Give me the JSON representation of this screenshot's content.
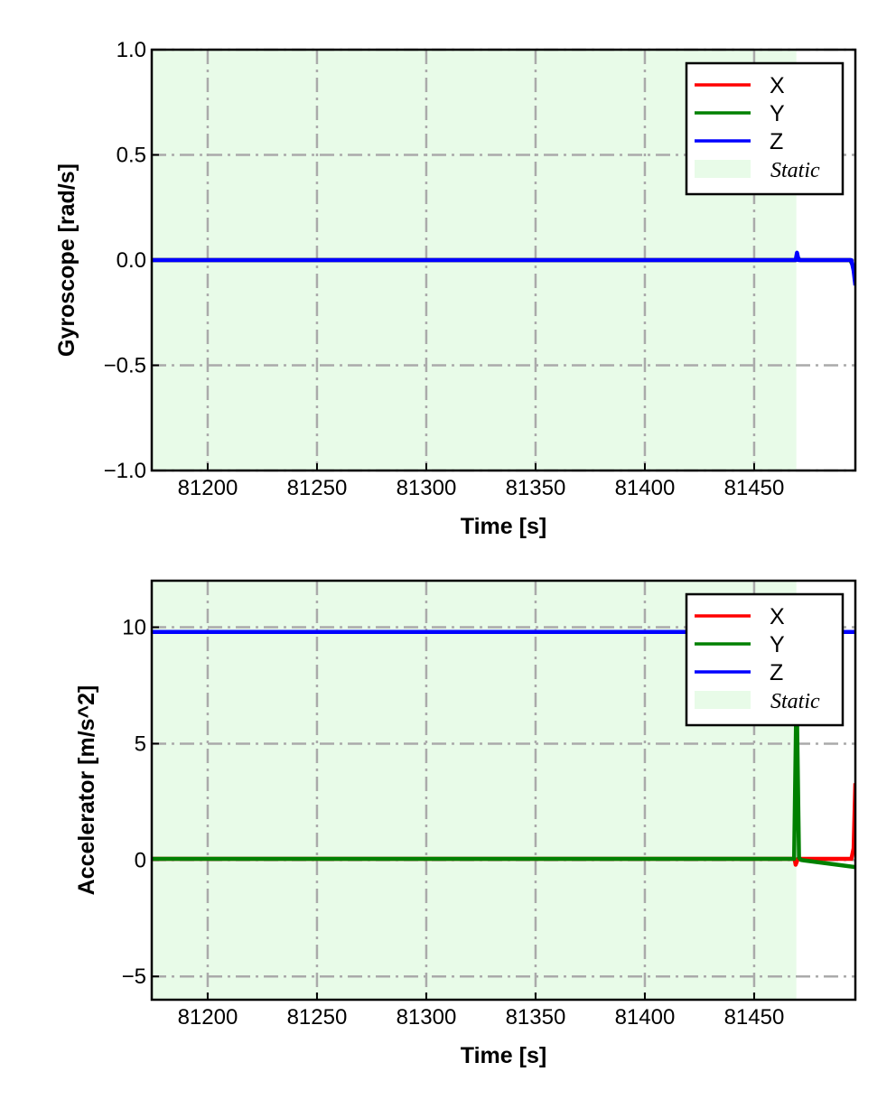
{
  "chart_data": [
    {
      "type": "line",
      "xlabel": "Time [s]",
      "ylabel": "Gyroscope [rad/s]",
      "xlim": [
        81174.4,
        81496.3
      ],
      "ylim": [
        -1.0,
        1.0
      ],
      "xticks": [
        81200,
        81250,
        81300,
        81350,
        81400,
        81450
      ],
      "xtick_labels": [
        "81200",
        "81250",
        "81300",
        "81350",
        "81400",
        "81450"
      ],
      "yticks": [
        -1.0,
        -0.5,
        0.0,
        0.5,
        1.0
      ],
      "ytick_labels": [
        "−1.0",
        "−0.5",
        "0.0",
        "0.5",
        "1.0"
      ],
      "grid": true,
      "legend_position": "top-right",
      "static_region": [
        81174.4,
        81469.3
      ],
      "static_color": "#e8fbe8",
      "series": [
        {
          "name": "X",
          "color": "#ff0000",
          "x": [
            81174.4,
            81469,
            81470,
            81471,
            81494,
            81496.3
          ],
          "y": [
            0,
            0,
            0.01,
            0,
            0,
            -0.05
          ]
        },
        {
          "name": "Y",
          "color": "#008000",
          "x": [
            81174.4,
            81469,
            81470,
            81471,
            81494,
            81496.3
          ],
          "y": [
            0,
            0,
            0.01,
            0,
            0,
            -0.05
          ]
        },
        {
          "name": "Z",
          "color": "#0000ff",
          "x": [
            81174.4,
            81469,
            81469.6,
            81470.3,
            81494.5,
            81495.5,
            81496.3
          ],
          "y": [
            0,
            0,
            0.035,
            0,
            0,
            -0.05,
            -0.12
          ]
        }
      ],
      "legend": [
        "X",
        "Y",
        "Z",
        "Static"
      ]
    },
    {
      "type": "line",
      "xlabel": "Time [s]",
      "ylabel": "Accelerator [m/s^2]",
      "xlim": [
        81174.4,
        81496.3
      ],
      "ylim": [
        -6,
        12
      ],
      "xticks": [
        81200,
        81250,
        81300,
        81350,
        81400,
        81450
      ],
      "xtick_labels": [
        "81200",
        "81250",
        "81300",
        "81350",
        "81400",
        "81450"
      ],
      "yticks": [
        -5,
        0,
        5,
        10
      ],
      "ytick_labels": [
        "−5",
        "0",
        "5",
        "10"
      ],
      "grid": true,
      "legend_position": "top-right",
      "static_region": [
        81174.4,
        81469.3
      ],
      "static_color": "#e8fbe8",
      "series": [
        {
          "name": "X",
          "color": "#ff0000",
          "x": [
            81174.4,
            81468.5,
            81469,
            81470,
            81494.5,
            81495.5,
            81496.3
          ],
          "y": [
            0.05,
            0.05,
            -0.2,
            0.05,
            0.05,
            0.5,
            3.3
          ]
        },
        {
          "name": "Y",
          "color": "#008000",
          "x": [
            81174.4,
            81468.3,
            81469.4,
            81470.5,
            81471.5,
            81496.3
          ],
          "y": [
            0.05,
            0.05,
            7.5,
            0.1,
            0.0,
            -0.3
          ]
        },
        {
          "name": "Z",
          "color": "#0000ff",
          "x": [
            81174.4,
            81496.3
          ],
          "y": [
            9.8,
            9.8
          ]
        }
      ],
      "legend": [
        "X",
        "Y",
        "Z",
        "Static"
      ]
    }
  ]
}
